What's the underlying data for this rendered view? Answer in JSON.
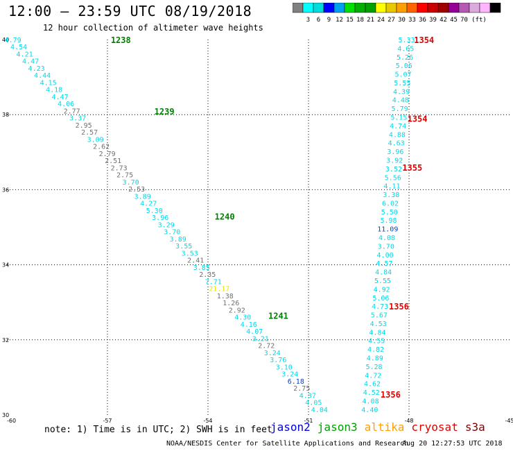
{
  "title": "12:00 — 23:59 UTC 08/19/2018",
  "subtitle": "12 hour collection of altimeter wave heights",
  "scale": {
    "colors": [
      "#808080",
      "#00ffff",
      "#00dcdc",
      "#0000ff",
      "#00a0f0",
      "#00e000",
      "#00b000",
      "#00a000",
      "#ffff00",
      "#e8c800",
      "#ffa000",
      "#ff6400",
      "#ff0000",
      "#c80000",
      "#a00000",
      "#960096",
      "#b45ab4",
      "#dcaadc",
      "#ffb4ff",
      "#000000"
    ],
    "labels": [
      "3",
      "6",
      "9",
      "12",
      "15",
      "18",
      "21",
      "24",
      "27",
      "30",
      "33",
      "36",
      "39",
      "42",
      "45",
      "70"
    ],
    "unit": "(ft)"
  },
  "chart_data": {
    "type": "scatter",
    "xlim": [
      -60,
      -45
    ],
    "ylim": [
      30,
      40
    ],
    "x_ticks": [
      "-60",
      "-57",
      "-54",
      "-51",
      "-48",
      "-45"
    ],
    "y_ticks": [
      "30",
      "32",
      "34",
      "36",
      "38",
      "40"
    ],
    "grid": true,
    "series": [
      {
        "x_start": -60.05,
        "y_start": 40,
        "x_end": -50.9,
        "y_end": 30.15,
        "values": [
          "4.79",
          "4.54",
          "4.21",
          "4.47",
          "4.23",
          "4.44",
          "4.15",
          "4.18",
          "4.47",
          "4.06",
          "2.77",
          "3.37",
          "2.95",
          "2.57",
          "3.09",
          "2.62",
          "2.79",
          "2.51",
          "2.73",
          "2.75",
          "3.70",
          "2.53",
          "3.89",
          "4.27",
          "5.30",
          "3.96",
          "3.29",
          "3.70",
          "3.89",
          "3.55",
          "3.53",
          "2.41",
          "3.85",
          "2.35",
          "7.71",
          "21.17",
          "1.38",
          "1.26",
          "2.92",
          "4.30",
          "4.16",
          "4.07",
          "3.21",
          "2.72",
          "3.24",
          "3.76",
          "3.10",
          "3.24",
          "6.18",
          "2.75",
          "4.37",
          "4.05",
          "4.04"
        ],
        "colors": [
          "#00d8e8",
          "#00d8e8",
          "#00d8e8",
          "#00d8e8",
          "#00d8e8",
          "#00d8e8",
          "#00d8e8",
          "#00d8e8",
          "#00d8e8",
          "#00d8e8",
          "#707070",
          "#00d8e8",
          "#707070",
          "#707070",
          "#00d8e8",
          "#707070",
          "#707070",
          "#707070",
          "#707070",
          "#707070",
          "#00d8e8",
          "#707070",
          "#00d8e8",
          "#00d8e8",
          "#00d8e8",
          "#00d8e8",
          "#00d8e8",
          "#00d8e8",
          "#00d8e8",
          "#00d8e8",
          "#00d8e8",
          "#707070",
          "#00d8e8",
          "#707070",
          "#00d8e8",
          "#e8e800",
          "#707070",
          "#707070",
          "#707070",
          "#00d8e8",
          "#00d8e8",
          "#00d8e8",
          "#00d8e8",
          "#707070",
          "#00d8e8",
          "#00d8e8",
          "#00d8e8",
          "#00d8e8",
          "#1040c0",
          "#707070",
          "#00d8e8",
          "#00d8e8",
          "#00d8e8"
        ]
      },
      {
        "x_start": -48.3,
        "y_start": 40,
        "x_end": -49.4,
        "y_end": 30.15,
        "values": [
          "5.33",
          "4.65",
          "5.26",
          "5.06",
          "5.07",
          "5.55",
          "4.39",
          "4.48",
          "5.79",
          "5.15",
          "4.74",
          "4.88",
          "4.63",
          "3.96",
          "3.92",
          "3.52",
          "5.56",
          "4.11",
          "3.38",
          "6.02",
          "5.50",
          "5.98",
          "11.09",
          "4.08",
          "3.70",
          "4.00",
          "4.57",
          "4.84",
          "5.55",
          "4.92",
          "5.06",
          "4.73",
          "5.67",
          "4.53",
          "4.84",
          "4.55",
          "4.82",
          "4.89",
          "5.28",
          "4.72",
          "4.62",
          "4.52",
          "4.08",
          "4.40"
        ],
        "colors": [
          "#00d8e8",
          "#00d8e8",
          "#00d8e8",
          "#00d8e8",
          "#00d8e8",
          "#00d8e8",
          "#00d8e8",
          "#00d8e8",
          "#00d8e8",
          "#00d8e8",
          "#00d8e8",
          "#00d8e8",
          "#00d8e8",
          "#00d8e8",
          "#00d8e8",
          "#00d8e8",
          "#00d8e8",
          "#00d8e8",
          "#00d8e8",
          "#00d8e8",
          "#00d8e8",
          "#00d8e8",
          "#1040c0",
          "#00d8e8",
          "#00d8e8",
          "#00d8e8",
          "#00d8e8",
          "#00d8e8",
          "#00d8e8",
          "#00d8e8",
          "#00d8e8",
          "#00d8e8",
          "#00d8e8",
          "#00d8e8",
          "#00d8e8",
          "#00d8e8",
          "#00d8e8",
          "#00d8e8",
          "#00d8e8",
          "#00d8e8",
          "#00d8e8",
          "#00d8e8",
          "#00d8e8",
          "#00d8e8"
        ]
      }
    ],
    "annotations": [
      {
        "text": "1238",
        "x": -56.9,
        "y": 40,
        "color": "#008000"
      },
      {
        "text": "1239",
        "x": -55.6,
        "y": 38.1,
        "color": "#008000"
      },
      {
        "text": "1240",
        "x": -53.8,
        "y": 35.3,
        "color": "#008000"
      },
      {
        "text": "1241",
        "x": -52.2,
        "y": 32.65,
        "color": "#008000"
      },
      {
        "text": "1354",
        "x": -47.85,
        "y": 40,
        "color": "#e00000"
      },
      {
        "text": "1354",
        "x": -48.05,
        "y": 37.9,
        "color": "#e00000"
      },
      {
        "text": "1355",
        "x": -48.2,
        "y": 36.6,
        "color": "#e00000"
      },
      {
        "text": "1356",
        "x": -48.6,
        "y": 32.9,
        "color": "#e00000"
      },
      {
        "text": "1356",
        "x": -48.85,
        "y": 30.55,
        "color": "#e00000"
      }
    ]
  },
  "note": "note: 1) Time is in UTC; 2) SWH is in feet",
  "legend": [
    {
      "name": "jason2",
      "color": "#0000e0"
    },
    {
      "name": "jason3",
      "color": "#00a000"
    },
    {
      "name": "altika",
      "color": "#ffa000"
    },
    {
      "name": "cryosat",
      "color": "#e00000"
    },
    {
      "name": "s3a",
      "color": "#800000"
    }
  ],
  "credit": "NOAA/NESDIS Center for Satellite Applications and Research",
  "timestamp": "Aug 20 12:27:53 UTC 2018"
}
